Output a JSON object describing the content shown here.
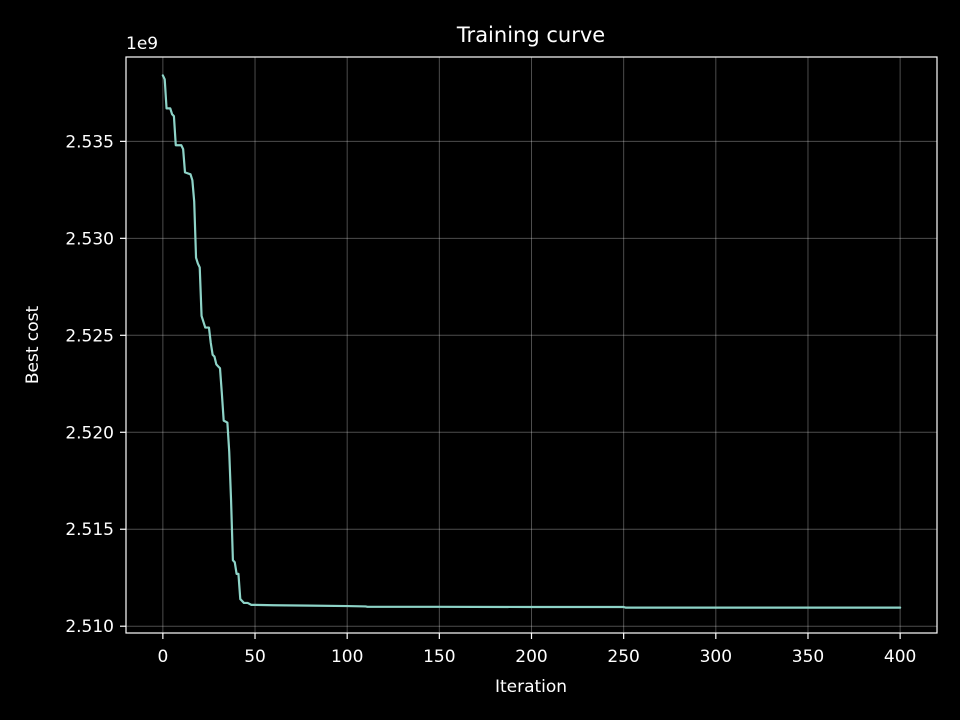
{
  "chart_data": {
    "type": "line",
    "title": "Training curve",
    "xlabel": "Iteration",
    "ylabel": "Best cost",
    "y_offset_label": "1e9",
    "xlim": [
      -20,
      420
    ],
    "ylim": [
      2.50965,
      2.53935
    ],
    "grid": true,
    "x_ticks": [
      0,
      50,
      100,
      150,
      200,
      250,
      300,
      350,
      400
    ],
    "x_tick_labels": [
      "0",
      "50",
      "100",
      "150",
      "200",
      "250",
      "300",
      "350",
      "400"
    ],
    "y_ticks": [
      2.51,
      2.515,
      2.52,
      2.525,
      2.53,
      2.535
    ],
    "y_tick_labels": [
      "2.510",
      "2.515",
      "2.520",
      "2.525",
      "2.530",
      "2.535"
    ],
    "series": [
      {
        "name": "Best cost",
        "color": "#8dd3c7",
        "x": [
          0,
          1,
          2,
          4,
          5,
          6,
          7,
          10,
          11,
          12,
          15,
          16,
          17,
          18,
          19,
          20,
          21,
          23,
          25,
          26,
          27,
          28,
          29,
          30,
          31,
          32,
          33,
          35,
          36,
          37,
          38,
          39,
          40,
          41,
          42,
          43,
          44,
          45,
          46,
          48,
          50,
          60,
          80,
          100,
          110,
          111,
          150,
          200,
          250,
          251,
          300,
          350,
          400
        ],
        "y": [
          2.5384,
          2.5382,
          2.5367,
          2.5367,
          2.5364,
          2.5363,
          2.5348,
          2.5348,
          2.5346,
          2.5334,
          2.5333,
          2.533,
          2.5319,
          2.529,
          2.5287,
          2.5285,
          2.526,
          2.5254,
          2.5254,
          2.5246,
          2.524,
          2.5239,
          2.5235,
          2.5234,
          2.5233,
          2.522,
          2.5206,
          2.5205,
          2.519,
          2.5165,
          2.5134,
          2.5133,
          2.5127,
          2.5127,
          2.5114,
          2.5113,
          2.5112,
          2.5112,
          2.5112,
          2.5111,
          2.5111,
          2.51108,
          2.51106,
          2.51104,
          2.51102,
          2.511,
          2.511,
          2.51099,
          2.51099,
          2.51096,
          2.51096,
          2.51096,
          2.51096
        ]
      }
    ]
  }
}
